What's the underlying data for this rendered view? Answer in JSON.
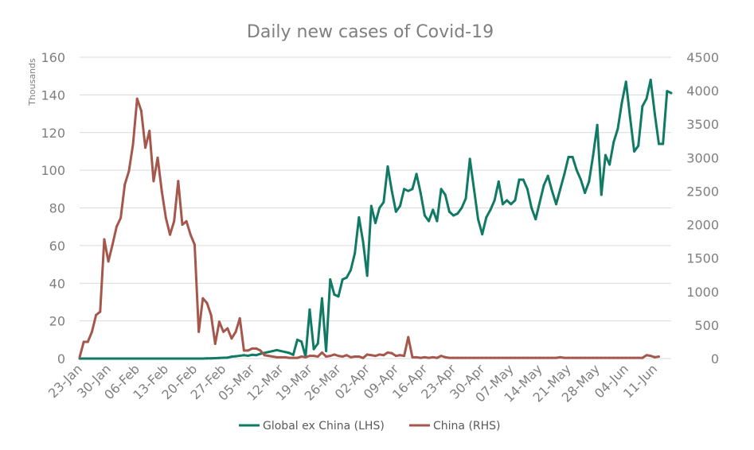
{
  "chart_data": {
    "type": "line",
    "title": "Daily new cases of Covid-19",
    "y_unit_label": "Thousands",
    "x_tick_labels": [
      "23-Jan",
      "30-Jan",
      "06-Feb",
      "13-Feb",
      "20-Feb",
      "27-Feb",
      "05-Mar",
      "12-Mar",
      "19-Mar",
      "26-Mar",
      "02-Apr",
      "09-Apr",
      "16-Apr",
      "23-Apr",
      "30-Apr",
      "07-May",
      "14-May",
      "21-May",
      "28-May",
      "04-Jun",
      "11-Jun"
    ],
    "x_range": [
      "23-Jan",
      "18-Jun"
    ],
    "y_left": {
      "label": "Global ex China (LHS)",
      "ylim": [
        0,
        160
      ],
      "ticks": [
        0,
        20,
        40,
        60,
        80,
        100,
        120,
        140,
        160
      ]
    },
    "y_right": {
      "label": "China (RHS)",
      "ylim": [
        0,
        4500
      ],
      "ticks": [
        0,
        500,
        1000,
        1500,
        2000,
        2500,
        3000,
        3500,
        4000,
        4500
      ]
    },
    "gridlines": true,
    "legend_position": "bottom",
    "series": [
      {
        "name": "Global ex China (LHS)",
        "axis": "left",
        "color": "#117a65",
        "start_date": "23-Jan",
        "values": [
          0,
          0,
          0,
          0,
          0,
          0,
          0,
          0,
          0,
          0,
          0,
          0,
          0,
          0,
          0,
          0,
          0,
          0,
          0,
          0,
          0,
          0,
          0,
          0,
          0,
          0,
          0,
          0,
          0,
          0,
          0,
          0.1,
          0.1,
          0.2,
          0.3,
          0.4,
          0.5,
          1,
          1.2,
          1.5,
          1.8,
          1.5,
          2,
          1.8,
          2.5,
          3,
          3.5,
          4,
          4.5,
          4,
          3.5,
          3,
          2,
          10,
          9,
          1,
          26,
          5,
          8,
          32,
          4,
          42,
          34,
          33,
          42,
          43,
          47,
          56,
          75,
          62,
          44,
          81,
          72,
          80,
          83,
          102,
          89,
          78,
          81,
          90,
          89,
          90,
          98,
          88,
          76,
          73,
          79,
          73,
          90,
          87,
          78,
          76,
          77,
          80,
          85,
          106,
          90,
          74,
          66,
          75,
          79,
          84,
          94,
          82,
          84,
          82,
          84,
          95,
          95,
          90,
          80,
          74,
          83,
          92,
          97,
          89,
          82,
          90,
          98,
          107,
          107,
          100,
          95,
          88,
          94,
          108,
          124,
          87,
          108,
          103,
          115,
          122,
          136,
          147,
          128,
          110,
          113,
          134,
          138,
          148,
          130,
          114,
          114,
          142,
          141
        ],
        "__values_note": ""
      },
      {
        "name": "China (RHS)",
        "axis": "right",
        "color": "#a5574c",
        "start_date": "23-Jan",
        "values": [
          20,
          250,
          250,
          400,
          650,
          700,
          1780,
          1450,
          1700,
          1970,
          2100,
          2600,
          2800,
          3200,
          3880,
          3700,
          3150,
          3400,
          2650,
          3000,
          2500,
          2100,
          1850,
          2050,
          2650,
          2000,
          2050,
          1850,
          1700,
          400,
          900,
          830,
          650,
          220,
          550,
          400,
          450,
          300,
          400,
          600,
          120,
          120,
          150,
          150,
          120,
          50,
          40,
          30,
          20,
          20,
          20,
          10,
          10,
          10,
          30,
          20,
          40,
          40,
          30,
          90,
          30,
          40,
          60,
          40,
          30,
          50,
          20,
          30,
          30,
          10,
          60,
          50,
          40,
          60,
          50,
          90,
          80,
          40,
          50,
          40,
          320,
          20,
          20,
          10,
          20,
          10,
          20,
          10,
          40,
          20,
          10,
          10,
          10,
          10,
          10,
          10,
          10,
          10,
          10,
          10,
          10,
          10,
          10,
          10,
          10,
          10,
          10,
          10,
          10,
          10,
          10,
          10,
          10,
          10,
          10,
          10,
          10,
          20,
          10,
          10,
          10,
          10,
          10,
          10,
          10,
          10,
          10,
          10,
          10,
          10,
          10,
          10,
          10,
          10,
          10,
          10,
          10,
          10,
          50,
          40,
          20,
          30
        ]
      }
    ]
  }
}
